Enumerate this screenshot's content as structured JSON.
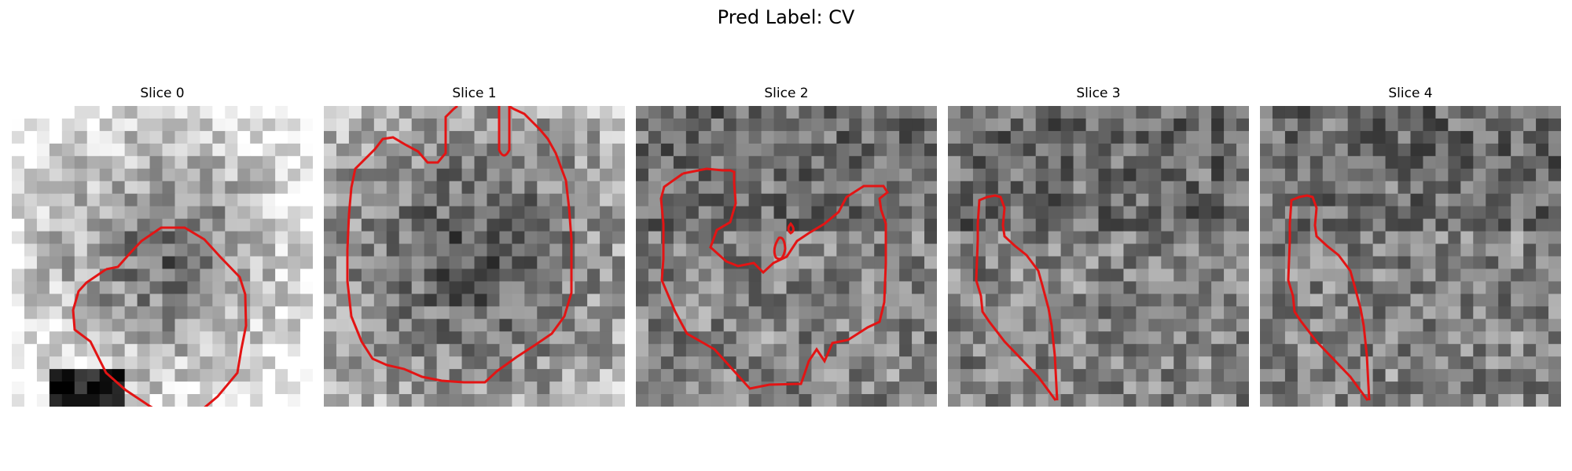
{
  "figure": {
    "title": "Pred Label: CV",
    "colors": {
      "contour": "#e31414",
      "background": "#ffffff"
    },
    "panels": [
      {
        "title": "Slice 0",
        "image": "grayscale-patch-with-lesion-contour",
        "grayscale_mode": "bright-border-dark-center"
      },
      {
        "title": "Slice 1",
        "image": "grayscale-patch-with-lesion-contour",
        "grayscale_mode": "noisy-bright-border"
      },
      {
        "title": "Slice 2",
        "image": "grayscale-patch-with-lesion-contour",
        "grayscale_mode": "noisy-texture"
      },
      {
        "title": "Slice 3",
        "image": "grayscale-patch-with-lesion-contour",
        "grayscale_mode": "noisy-texture"
      },
      {
        "title": "Slice 4",
        "image": "grayscale-patch-with-lesion-contour",
        "grayscale_mode": "noisy-texture"
      }
    ]
  }
}
